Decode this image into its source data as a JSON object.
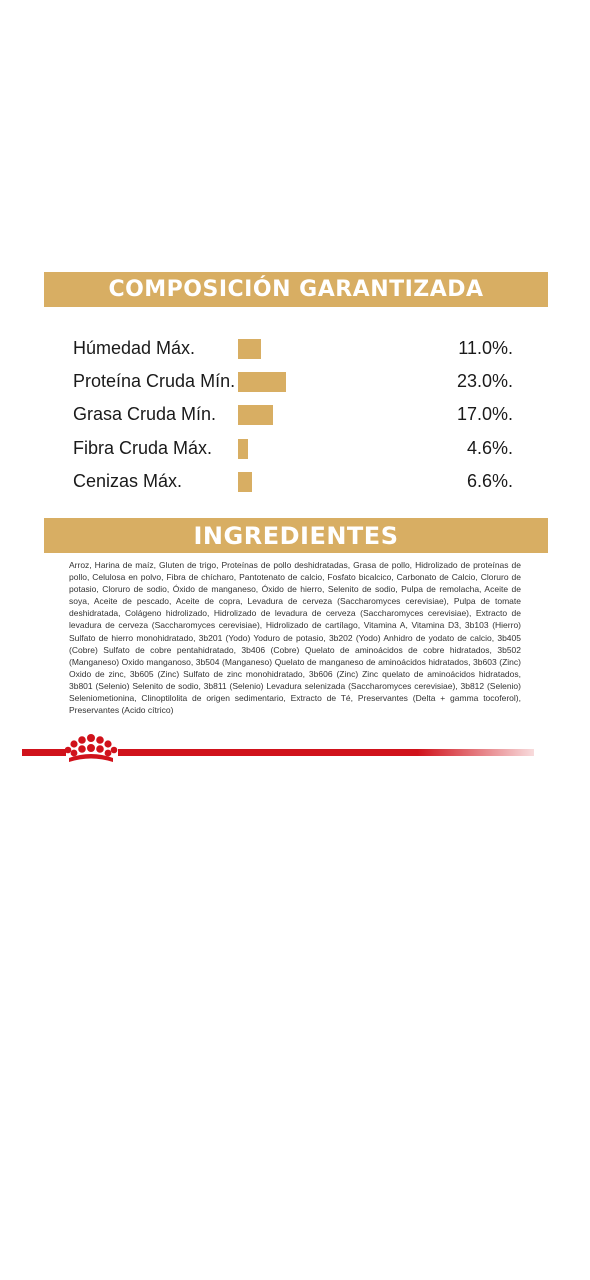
{
  "composicion": {
    "title": "COMPOSICIÓN GARANTIZADA",
    "accent_color": "#d8ae63",
    "max_percent": 23.0,
    "rows": [
      {
        "label": "Húmedad Máx.",
        "value_text": "11.0%.",
        "value": 11.0
      },
      {
        "label": "Proteína Cruda Mín.",
        "value_text": "23.0%.",
        "value": 23.0
      },
      {
        "label": "Grasa Cruda Mín.",
        "value_text": "17.0%.",
        "value": 17.0
      },
      {
        "label": "Fibra Cruda Máx.",
        "value_text": "4.6%.",
        "value": 4.6
      },
      {
        "label": "Cenizas Máx.",
        "value_text": "6.6%.",
        "value": 6.6
      }
    ]
  },
  "ingredientes": {
    "title": "INGREDIENTES",
    "text": "Arroz, Harina de maíz, Gluten de trigo, Proteínas de pollo deshidratadas, Grasa de pollo, Hidrolizado de proteínas de pollo, Celulosa en polvo, Fibra de chícharo, Pantotenato de calcio, Fosfato bicalcico, Carbonato de Calcio, Cloruro de potasio, Cloruro de sodio, Óxido de manganeso, Óxido de hierro, Selenito de sodio, Pulpa de remolacha, Aceite de soya, Aceite de pescado, Aceite de copra, Levadura de cerveza (Saccharomyces cerevisiae), Pulpa de tomate deshidratada, Colágeno hidrolizado, Hidrolizado de levadura de cerveza (Saccharomyces cerevisiae), Extracto de levadura de cerveza (Saccharomyces cerevisiae), Hidrolizado de cartílago, Vitamina A, Vitamina D3, 3b103 (Hierro) Sulfato de hierro monohidratado, 3b201 (Yodo) Yoduro de potasio, 3b202 (Yodo) Anhidro de yodato de calcio, 3b405 (Cobre) Sulfato de cobre pentahidratado, 3b406 (Cobre) Quelato de aminoácidos de cobre hidratados, 3b502 (Manganeso) Oxido manganoso, 3b504 (Manganeso) Quelato de manganeso de aminoácidos hidratados, 3b603 (Zinc) Oxido de zinc, 3b605 (Zinc) Sulfato de zinc monohidratado, 3b606 (Zinc) Zinc quelato de aminoácidos hidratados, 3b801 (Selenio) Selenito de sodio, 3b811 (Selenio) Levadura selenizada (Saccharomyces cerevisiae), 3b812 (Selenio) Seleniometionina, Clinoptilolita de origen sedimentario, Extracto de Té, Preservantes (Delta + gamma tocoferol), Preservantes (Acido cítrico)"
  },
  "footer": {
    "brand_color": "#d0121b",
    "logo_icon": "royal-canin-crown-icon"
  }
}
